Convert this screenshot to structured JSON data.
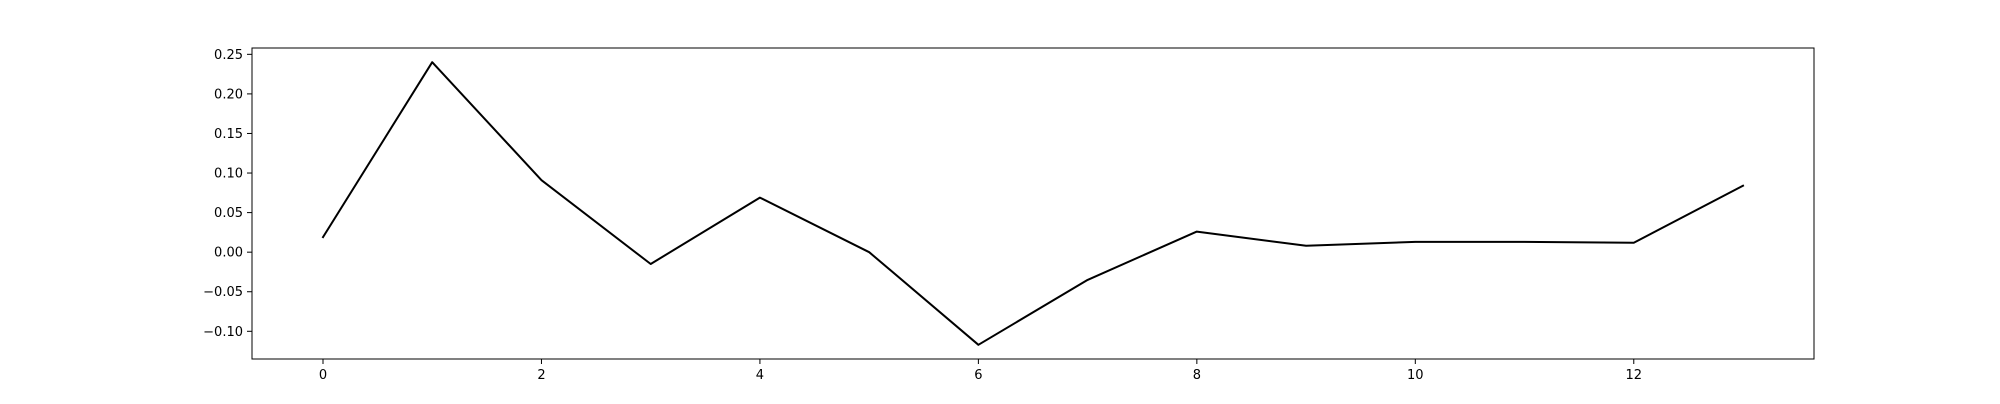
{
  "chart_data": {
    "type": "line",
    "title": "",
    "xlabel": "",
    "ylabel": "",
    "grid": false,
    "legend": "none",
    "xlim": [
      -0.65,
      13.65
    ],
    "ylim": [
      -0.135,
      0.258
    ],
    "x_ticks": [
      0,
      2,
      4,
      6,
      8,
      10,
      12
    ],
    "x_tick_labels": [
      "0",
      "2",
      "4",
      "6",
      "8",
      "10",
      "12"
    ],
    "y_ticks": [
      0.25,
      0.2,
      0.15,
      0.1,
      0.05,
      0.0,
      -0.05,
      -0.1
    ],
    "y_tick_labels": [
      "0.25",
      "0.20",
      "0.15",
      "0.10",
      "0.05",
      "0.00",
      "−0.05",
      "−0.10"
    ],
    "series": [
      {
        "color": "#000000",
        "x": [
          0,
          1,
          2,
          3,
          4,
          5,
          6,
          7,
          8,
          9,
          10,
          11,
          12,
          13
        ],
        "y": [
          0.019,
          0.24,
          0.091,
          -0.015,
          0.069,
          0.0,
          -0.117,
          -0.035,
          0.026,
          0.008,
          0.013,
          0.013,
          0.012,
          0.084
        ]
      }
    ]
  }
}
